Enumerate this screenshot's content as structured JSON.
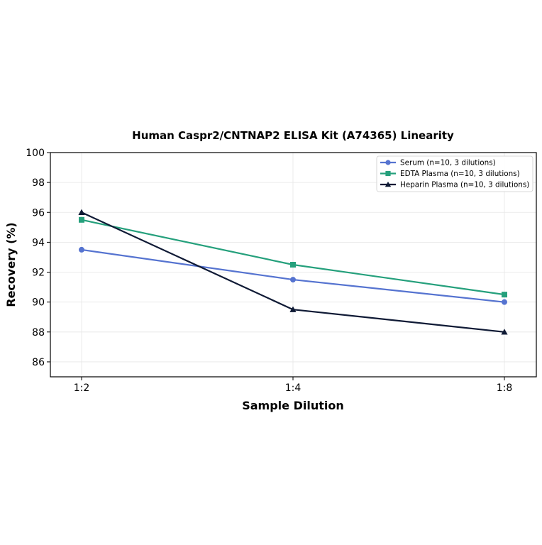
{
  "chart_data": {
    "type": "line",
    "title": "Human Caspr2/CNTNAP2 ELISA Kit (A74365) Linearity",
    "xlabel": "Sample Dilution",
    "ylabel": "Recovery (%)",
    "categories": [
      "1:2",
      "1:4",
      "1:8"
    ],
    "ylim": [
      85,
      100
    ],
    "yticks": [
      86,
      88,
      90,
      92,
      94,
      96,
      98,
      100
    ],
    "grid": true,
    "legend_position": "top-right",
    "series": [
      {
        "name": "Serum (n=10, 3 dilutions)",
        "values": [
          93.5,
          91.5,
          90.0
        ],
        "color": "#5573d0",
        "marker": "circle"
      },
      {
        "name": "EDTA Plasma (n=10, 3 dilutions)",
        "values": [
          95.5,
          92.5,
          90.5
        ],
        "color": "#25a07c",
        "marker": "square"
      },
      {
        "name": "Heparin Plasma (n=10, 3 dilutions)",
        "values": [
          96.0,
          89.5,
          88.0
        ],
        "color": "#0f1a35",
        "marker": "triangle"
      }
    ]
  }
}
